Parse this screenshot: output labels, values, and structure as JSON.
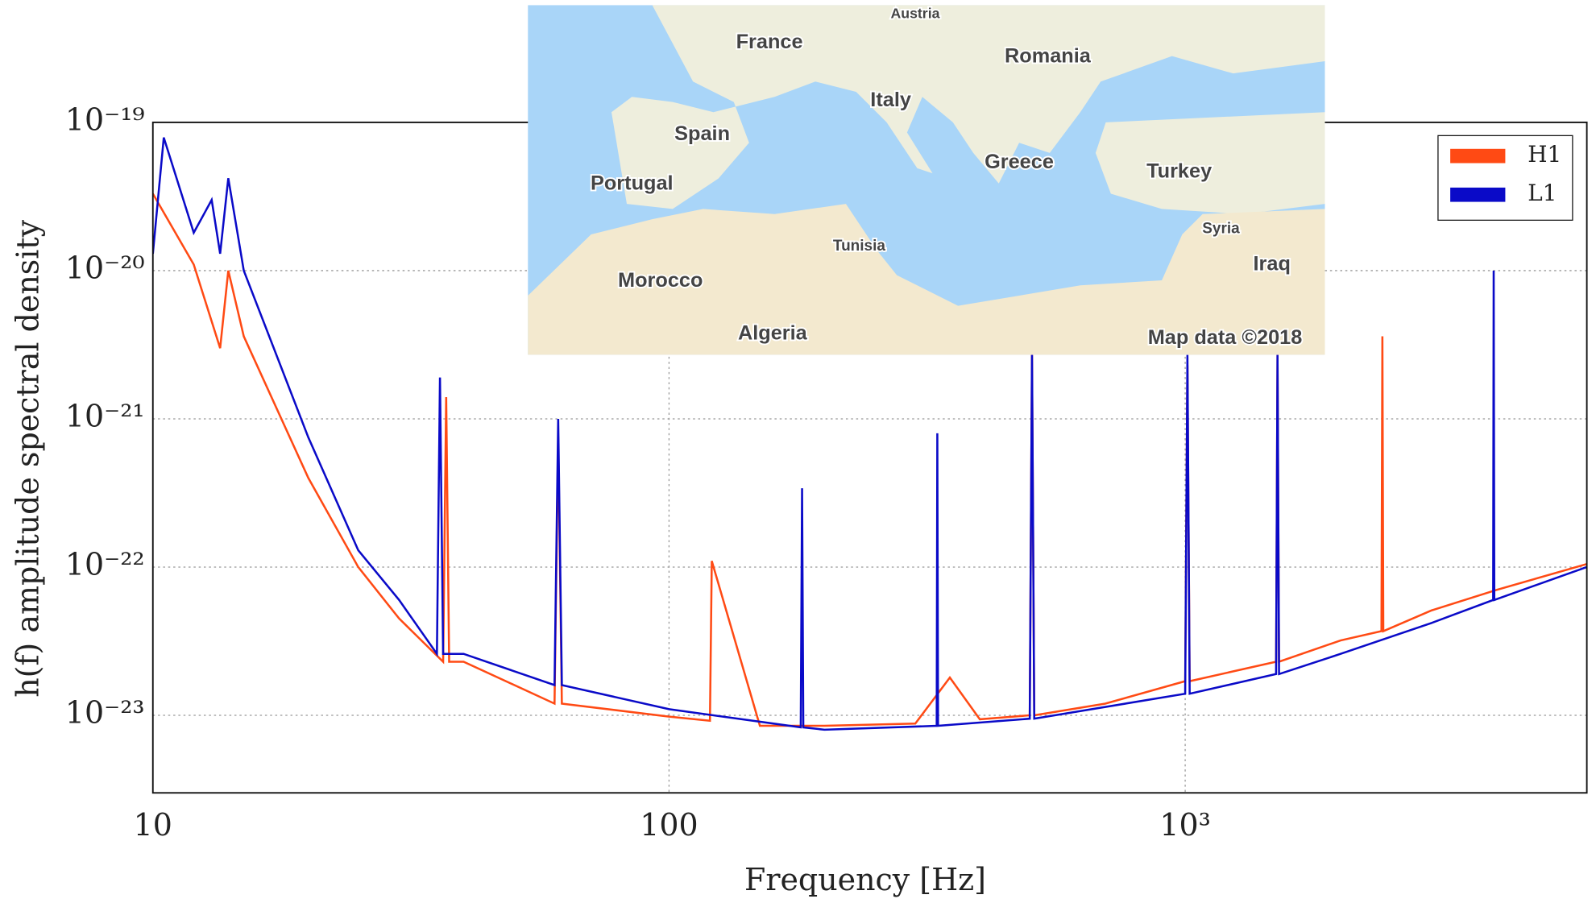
{
  "chart_data": {
    "type": "line",
    "xlabel": "Frequency [Hz]",
    "ylabel": "h(f) amplitude spectral density",
    "xscale": "log",
    "yscale": "log",
    "xlim": [
      10,
      6000
    ],
    "ylim": [
      3e-24,
      1e-19
    ],
    "xticks": [
      10,
      100,
      {
        "value": 1000,
        "label": "10³"
      }
    ],
    "yticks": [
      {
        "value": 1e-19,
        "label": "10⁻¹⁹"
      },
      {
        "value": 1e-20,
        "label": "10⁻²⁰"
      },
      {
        "value": 1e-21,
        "label": "10⁻²¹"
      },
      {
        "value": 1e-22,
        "label": "10⁻²²"
      },
      {
        "value": 1e-23,
        "label": "10⁻²³"
      }
    ],
    "grid": true,
    "legend": "upper right",
    "series": [
      {
        "name": "H1",
        "color": "#ff4a14",
        "x": [
          10,
          12,
          13.5,
          14,
          15,
          20,
          25,
          30,
          36.5,
          37,
          37.5,
          40,
          60,
          61,
          62,
          100,
          120,
          121,
          150,
          200,
          300,
          350,
          400,
          500,
          505,
          510,
          700,
          1000,
          1010,
          1020,
          1500,
          1510,
          1520,
          2000,
          2400,
          2410,
          2420,
          3000,
          4000,
          6000
        ],
        "values": [
          3.3e-20,
          1.1e-20,
          3e-21,
          1e-20,
          3.6e-21,
          4e-22,
          1e-22,
          4.5e-23,
          2.3e-23,
          1.4e-21,
          2.3e-23,
          2.3e-23,
          1.2e-23,
          7.5e-22,
          1.2e-23,
          9.8e-24,
          9.2e-24,
          1.1e-22,
          8.5e-24,
          8.5e-24,
          8.8e-24,
          1.8e-23,
          9.4e-24,
          1e-23,
          2.7e-21,
          1e-23,
          1.2e-23,
          1.7e-23,
          2.3e-21,
          1.7e-23,
          2.3e-23,
          2.7e-21,
          2.3e-23,
          3.2e-23,
          3.7e-23,
          3.6e-21,
          3.7e-23,
          5.1e-23,
          7e-23,
          1.05e-22
        ]
      },
      {
        "name": "L1",
        "color": "#0a0ac8",
        "x": [
          10,
          10.5,
          12,
          13,
          13.5,
          14,
          15,
          20,
          25,
          30,
          35.5,
          36,
          36.5,
          40,
          60,
          61,
          62,
          100,
          180,
          181,
          182,
          200,
          330,
          331,
          332,
          500,
          505,
          510,
          1000,
          1010,
          1020,
          1500,
          1510,
          1520,
          2000,
          3000,
          3950,
          3960,
          3970,
          6000
        ],
        "values": [
          1.3e-20,
          7.9e-20,
          1.8e-20,
          3e-20,
          1.3e-20,
          4.2e-20,
          1e-20,
          7.5e-22,
          1.3e-22,
          6e-23,
          2.6e-23,
          1.9e-21,
          2.6e-23,
          2.6e-23,
          1.6e-23,
          1e-21,
          1.6e-23,
          1.1e-23,
          8.3e-24,
          3.4e-22,
          8.3e-24,
          8e-24,
          8.5e-24,
          8e-22,
          8.5e-24,
          9.5e-24,
          2.7e-21,
          9.5e-24,
          1.4e-23,
          2.7e-21,
          1.4e-23,
          1.9e-23,
          2.7e-21,
          1.9e-23,
          2.6e-23,
          4.2e-23,
          6e-23,
          1e-20,
          6e-23,
          1e-22
        ]
      }
    ]
  },
  "map": {
    "labels": [
      "Austria",
      "France",
      "Romania",
      "Italy",
      "Spain",
      "Greece",
      "Turkey",
      "Portugal",
      "Syria",
      "Tunisia",
      "Iraq",
      "Morocco",
      "Algeria"
    ],
    "attribution": "Map data ©2018"
  }
}
